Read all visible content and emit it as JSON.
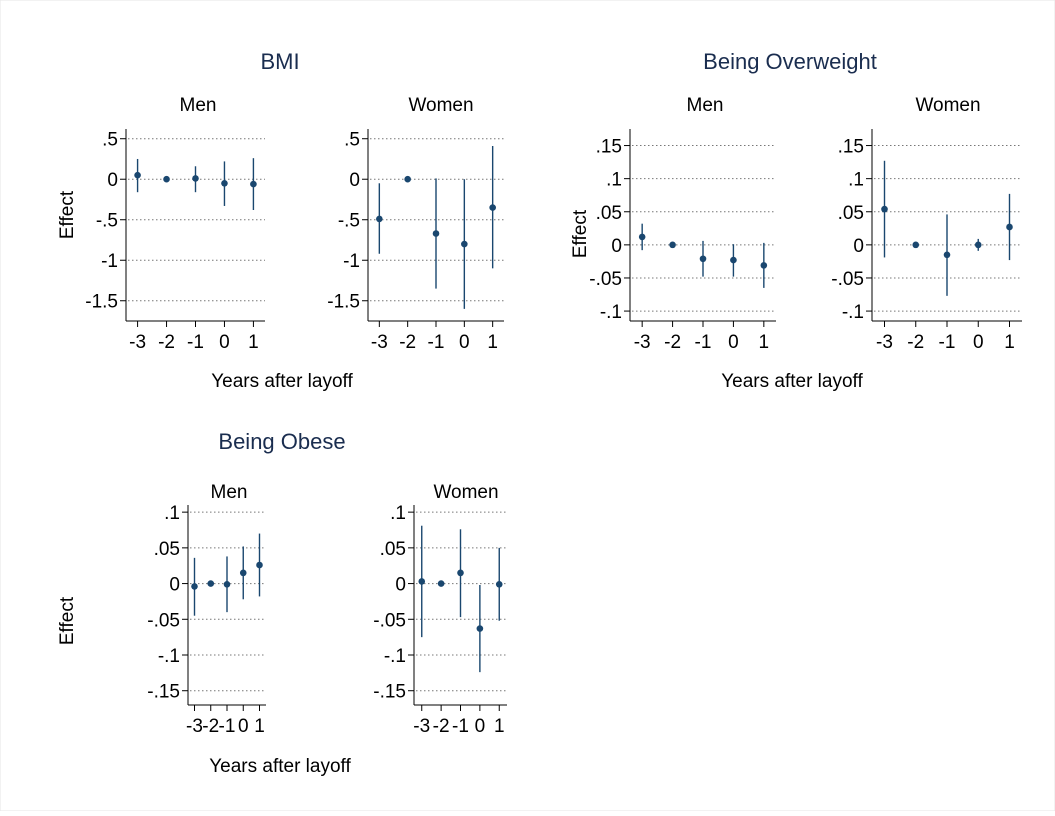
{
  "colors": {
    "marker": "#1a476f",
    "title": "#1a2d4f",
    "grid": "#777777",
    "axis": "#000000"
  },
  "chart_data": [
    {
      "type": "scatter",
      "title": "BMI",
      "xlabel": "Years after layoff",
      "ylabel": "Effect",
      "xlim": [
        -3.4,
        1.4
      ],
      "ylim": [
        -1.75,
        0.62
      ],
      "yticks": [
        0.5,
        0,
        -0.5,
        -1,
        -1.5
      ],
      "ytick_labels": [
        ".5",
        "0",
        "-.5",
        "-1",
        "-1.5"
      ],
      "xticks": [
        -3,
        -2,
        -1,
        0,
        1
      ],
      "xtick_labels": [
        "-3",
        "-2",
        "-1",
        "0",
        "1"
      ],
      "grid": true,
      "panels": [
        {
          "title": "Men",
          "x": [
            -3,
            -2,
            -1,
            0,
            1
          ],
          "y": [
            0.05,
            0,
            0.01,
            -0.05,
            -0.06
          ],
          "ci_low": [
            -0.16,
            0,
            -0.16,
            -0.33,
            -0.38
          ],
          "ci_high": [
            0.25,
            0,
            0.16,
            0.22,
            0.26
          ]
        },
        {
          "title": "Women",
          "x": [
            -3,
            -2,
            -1,
            0,
            1
          ],
          "y": [
            -0.49,
            0,
            -0.67,
            -0.8,
            -0.35
          ],
          "ci_low": [
            -0.92,
            0,
            -1.35,
            -1.6,
            -1.1
          ],
          "ci_high": [
            -0.05,
            0,
            0.01,
            0,
            0.41
          ]
        }
      ]
    },
    {
      "type": "scatter",
      "title": "Being Overweight",
      "xlabel": "Years after layoff",
      "ylabel": "Effect",
      "xlim": [
        -3.4,
        1.4
      ],
      "ylim": [
        -0.115,
        0.175
      ],
      "yticks": [
        0.15,
        0.1,
        0.05,
        0,
        -0.05,
        -0.1
      ],
      "ytick_labels": [
        ".15",
        ".1",
        ".05",
        "0",
        "-.05",
        "-.1"
      ],
      "xticks": [
        -3,
        -2,
        -1,
        0,
        1
      ],
      "xtick_labels": [
        "-3",
        "-2",
        "-1",
        "0",
        "1"
      ],
      "grid": true,
      "panels": [
        {
          "title": "Men",
          "x": [
            -3,
            -2,
            -1,
            0,
            1
          ],
          "y": [
            0.012,
            0,
            -0.021,
            -0.023,
            -0.031
          ],
          "ci_low": [
            -0.008,
            0,
            -0.048,
            -0.048,
            -0.065
          ],
          "ci_high": [
            0.032,
            0,
            0.006,
            0.001,
            0.003
          ]
        },
        {
          "title": "Women",
          "x": [
            -3,
            -2,
            -1,
            0,
            1
          ],
          "y": [
            0.054,
            0,
            -0.015,
            0,
            0.027
          ],
          "ci_low": [
            -0.019,
            0,
            -0.077,
            -0.009,
            -0.023
          ],
          "ci_high": [
            0.127,
            0,
            0.046,
            0.009,
            0.077
          ]
        }
      ]
    },
    {
      "type": "scatter",
      "title": "Being Obese",
      "xlabel": "Years after layoff",
      "ylabel": "Effect",
      "xlim": [
        -3.4,
        1.4
      ],
      "ylim": [
        -0.17,
        0.11
      ],
      "yticks": [
        0.1,
        0.05,
        0,
        -0.05,
        -0.1,
        -0.15
      ],
      "ytick_labels": [
        ".1",
        ".05",
        "0",
        "-.05",
        "-.1",
        "-.15"
      ],
      "xticks": [
        -3,
        -2,
        -1,
        0,
        1
      ],
      "xtick_labels": [
        "-3",
        "-2",
        "-1",
        "0",
        "1"
      ],
      "grid": true,
      "panels": [
        {
          "title": "Men",
          "x": [
            -3,
            -2,
            -1,
            0,
            1
          ],
          "y": [
            -0.004,
            0,
            -0.001,
            0.015,
            0.026
          ],
          "ci_low": [
            -0.045,
            0,
            -0.04,
            -0.022,
            -0.018
          ],
          "ci_high": [
            0.036,
            0,
            0.038,
            0.052,
            0.07
          ]
        },
        {
          "title": "Women",
          "x": [
            -3,
            -2,
            -1,
            0,
            1
          ],
          "y": [
            0.003,
            0,
            0.015,
            -0.063,
            -0.001
          ],
          "ci_low": [
            -0.075,
            0,
            -0.047,
            -0.124,
            -0.052
          ],
          "ci_high": [
            0.081,
            0,
            0.076,
            -0.002,
            0.05
          ]
        }
      ]
    }
  ]
}
